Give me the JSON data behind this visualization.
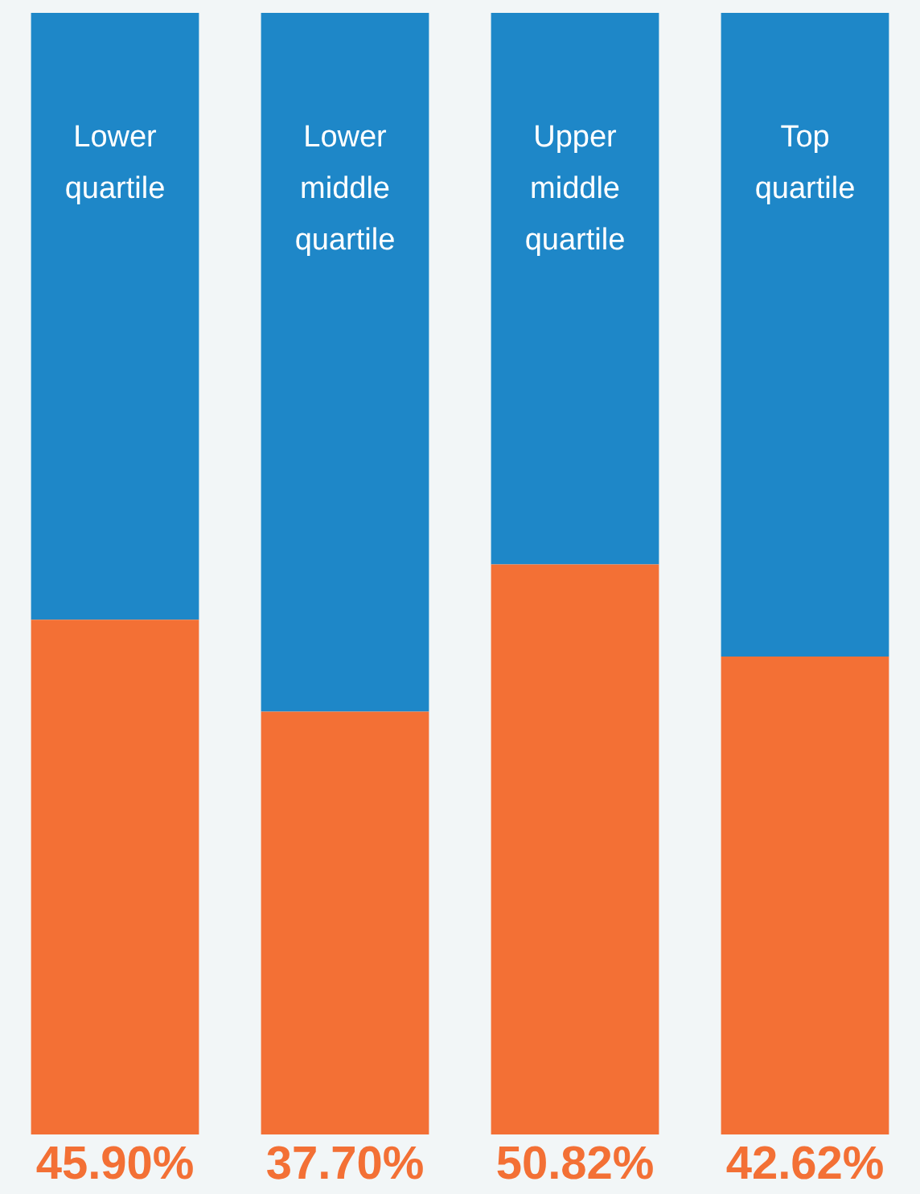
{
  "chart_data": {
    "type": "bar",
    "stacked": true,
    "categories": [
      "Lower quartile",
      "Lower middle quartile",
      "Upper middle quartile",
      "Top quartile"
    ],
    "series": [
      {
        "color": "#f37035",
        "values": [
          45.9,
          37.7,
          50.82,
          42.62
        ],
        "value_labels": [
          "45.90%",
          "37.70%",
          "50.82%",
          "42.62%"
        ]
      },
      {
        "color": "#1e87c8",
        "values": [
          54.1,
          62.3,
          49.18,
          57.38
        ]
      }
    ],
    "ylim": [
      0,
      100
    ],
    "tick_labels": false,
    "legend": false
  }
}
